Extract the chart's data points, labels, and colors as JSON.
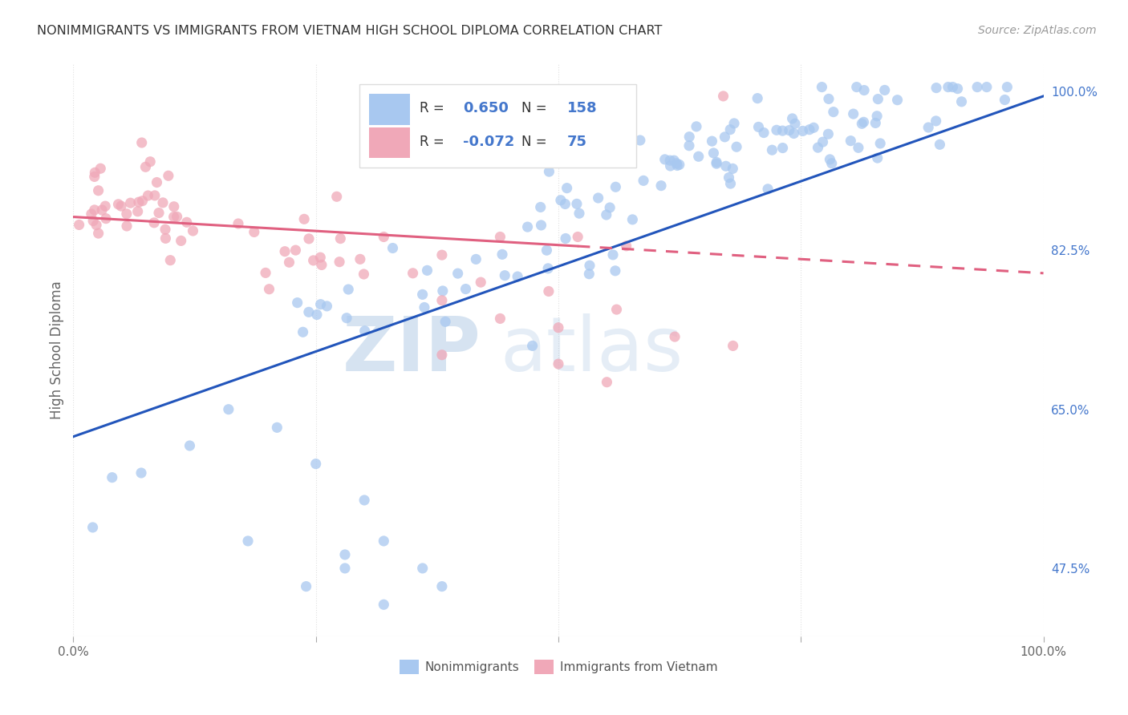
{
  "title": "NONIMMIGRANTS VS IMMIGRANTS FROM VIETNAM HIGH SCHOOL DIPLOMA CORRELATION CHART",
  "source": "Source: ZipAtlas.com",
  "ylabel": "High School Diploma",
  "xmin": 0.0,
  "xmax": 1.0,
  "ymin": 0.4,
  "ymax": 1.03,
  "ytick_labels_right": [
    "47.5%",
    "65.0%",
    "82.5%",
    "100.0%"
  ],
  "ytick_positions_right": [
    0.475,
    0.65,
    0.825,
    1.0
  ],
  "blue_color": "#a8c8f0",
  "pink_color": "#f0a8b8",
  "blue_line_color": "#2255bb",
  "pink_line_color": "#e06080",
  "watermark_zip": "ZIP",
  "watermark_atlas": "atlas",
  "legend_label_blue": "Nonimmigrants",
  "legend_label_pink": "Immigrants from Vietnam",
  "blue_line_y_start": 0.62,
  "blue_line_y_end": 0.995,
  "pink_line_y_start": 0.862,
  "pink_line_y_end": 0.8,
  "pink_line_solid_end_x": 0.52,
  "background_color": "#ffffff",
  "grid_color": "#e0e0e0"
}
